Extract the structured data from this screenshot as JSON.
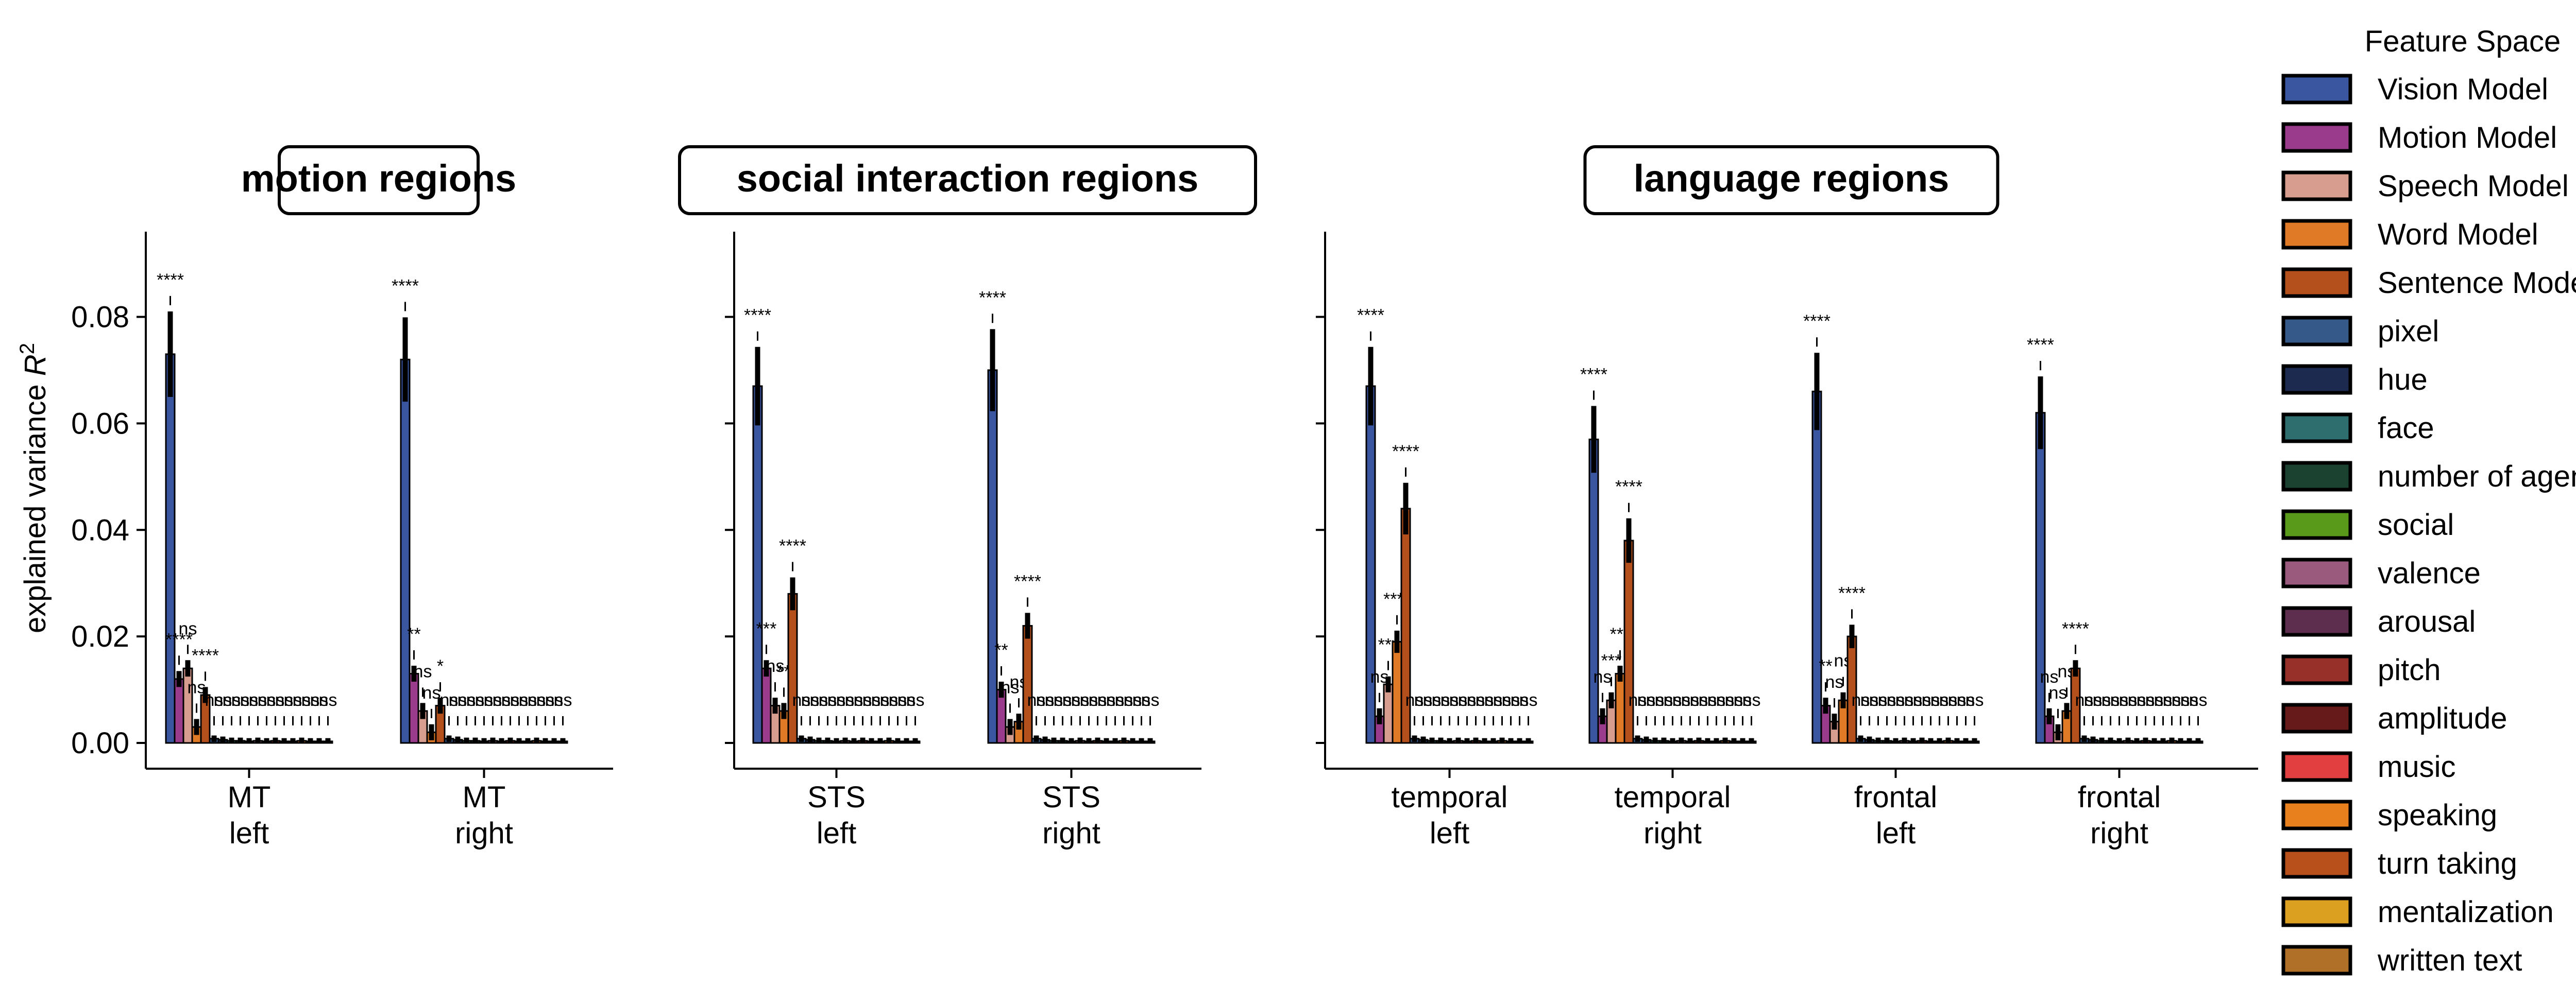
{
  "chart_data": {
    "type": "bar",
    "ylabel": "explained variance R²",
    "ylim": [
      0,
      0.096
    ],
    "yticks": [
      "0.00",
      "0.02",
      "0.04",
      "0.06",
      "0.08"
    ],
    "legend": {
      "title": "Feature Space",
      "placement": "right",
      "entries": [
        {
          "name": "Vision Model",
          "color": "#3a56a0"
        },
        {
          "name": "Motion Model",
          "color": "#9b3b8c"
        },
        {
          "name": "Speech Model",
          "color": "#d79d8e"
        },
        {
          "name": "Word Model",
          "color": "#e07a26"
        },
        {
          "name": "Sentence Model",
          "color": "#b3501c"
        },
        {
          "name": "pixel",
          "color": "#355a8a"
        },
        {
          "name": "hue",
          "color": "#1d2a4f"
        },
        {
          "name": "face",
          "color": "#2e6e6e"
        },
        {
          "name": "number of agents",
          "color": "#1b4231"
        },
        {
          "name": "social",
          "color": "#5a9a1a"
        },
        {
          "name": "valence",
          "color": "#9a5a7e"
        },
        {
          "name": "arousal",
          "color": "#5e2e4e"
        },
        {
          "name": "pitch",
          "color": "#963029"
        },
        {
          "name": "amplitude",
          "color": "#661a1a"
        },
        {
          "name": "music",
          "color": "#e24040"
        },
        {
          "name": "speaking",
          "color": "#e8801e"
        },
        {
          "name": "turn taking",
          "color": "#b8501c"
        },
        {
          "name": "mentalization",
          "color": "#dca020"
        },
        {
          "name": "written text",
          "color": "#b07028"
        }
      ]
    },
    "panels": [
      {
        "title": "motion regions",
        "groups": [
          {
            "label": [
              "MT",
              "left"
            ],
            "values": [
              0.073,
              0.012,
              0.014,
              0.003,
              0.009,
              0.0008,
              0.0006,
              0.0004,
              0.0004,
              0.0003,
              0.0004,
              0.0003,
              0.0004,
              0.0003,
              0.0003,
              0.0004,
              0.0003,
              0.0003,
              0.0003
            ],
            "sig": [
              "****",
              "****",
              "ns",
              "ns",
              "****",
              "ns",
              "ns",
              "ns",
              "ns",
              "ns",
              "ns",
              "ns",
              "ns",
              "ns",
              "ns",
              "ns",
              "ns",
              "ns",
              "ns"
            ]
          },
          {
            "label": [
              "MT",
              "right"
            ],
            "values": [
              0.072,
              0.013,
              0.006,
              0.002,
              0.007,
              0.0008,
              0.0006,
              0.0004,
              0.0004,
              0.0003,
              0.0004,
              0.0003,
              0.0004,
              0.0003,
              0.0003,
              0.0004,
              0.0003,
              0.0003,
              0.0003
            ],
            "sig": [
              "****",
              "**",
              "ns",
              "ns",
              "*",
              "ns",
              "ns",
              "ns",
              "ns",
              "ns",
              "ns",
              "ns",
              "ns",
              "ns",
              "ns",
              "ns",
              "ns",
              "ns",
              "ns"
            ]
          }
        ]
      },
      {
        "title": "social interaction regions",
        "groups": [
          {
            "label": [
              "STS",
              "left"
            ],
            "values": [
              0.067,
              0.014,
              0.007,
              0.006,
              0.028,
              0.0008,
              0.0006,
              0.0004,
              0.0004,
              0.0003,
              0.0004,
              0.0003,
              0.0004,
              0.0003,
              0.0003,
              0.0004,
              0.0003,
              0.0003,
              0.0003
            ],
            "sig": [
              "****",
              "***",
              "ns",
              "**",
              "****",
              "ns",
              "ns",
              "ns",
              "ns",
              "ns",
              "ns",
              "ns",
              "ns",
              "ns",
              "ns",
              "ns",
              "ns",
              "ns",
              "ns"
            ]
          },
          {
            "label": [
              "STS",
              "right"
            ],
            "values": [
              0.07,
              0.01,
              0.003,
              0.004,
              0.022,
              0.0008,
              0.0006,
              0.0004,
              0.0004,
              0.0003,
              0.0004,
              0.0003,
              0.0004,
              0.0003,
              0.0003,
              0.0004,
              0.0003,
              0.0003,
              0.0003
            ],
            "sig": [
              "****",
              "**",
              "ns",
              "ns",
              "****",
              "ns",
              "ns",
              "ns",
              "ns",
              "ns",
              "ns",
              "ns",
              "ns",
              "ns",
              "ns",
              "ns",
              "ns",
              "ns",
              "ns"
            ]
          }
        ]
      },
      {
        "title": "language regions",
        "groups": [
          {
            "label": [
              "temporal",
              "left"
            ],
            "values": [
              0.067,
              0.005,
              0.011,
              0.019,
              0.044,
              0.0008,
              0.0006,
              0.0004,
              0.0004,
              0.0003,
              0.0004,
              0.0003,
              0.0004,
              0.0003,
              0.0003,
              0.0004,
              0.0003,
              0.0003,
              0.0003
            ],
            "sig": [
              "****",
              "ns",
              "***",
              "****",
              "****",
              "ns",
              "ns",
              "ns",
              "ns",
              "ns",
              "ns",
              "ns",
              "ns",
              "ns",
              "ns",
              "ns",
              "ns",
              "ns",
              "ns"
            ]
          },
          {
            "label": [
              "temporal",
              "right"
            ],
            "values": [
              0.057,
              0.005,
              0.008,
              0.013,
              0.038,
              0.0008,
              0.0006,
              0.0004,
              0.0004,
              0.0003,
              0.0004,
              0.0003,
              0.0004,
              0.0003,
              0.0003,
              0.0004,
              0.0003,
              0.0003,
              0.0003
            ],
            "sig": [
              "****",
              "ns",
              "***",
              "***",
              "****",
              "ns",
              "ns",
              "ns",
              "ns",
              "ns",
              "ns",
              "ns",
              "ns",
              "ns",
              "ns",
              "ns",
              "ns",
              "ns",
              "ns"
            ]
          },
          {
            "label": [
              "frontal",
              "left"
            ],
            "values": [
              0.066,
              0.007,
              0.004,
              0.008,
              0.02,
              0.0008,
              0.0006,
              0.0004,
              0.0004,
              0.0003,
              0.0004,
              0.0003,
              0.0004,
              0.0003,
              0.0003,
              0.0004,
              0.0003,
              0.0003,
              0.0003
            ],
            "sig": [
              "****",
              "**",
              "ns",
              "ns",
              "****",
              "ns",
              "ns",
              "ns",
              "ns",
              "ns",
              "ns",
              "ns",
              "ns",
              "ns",
              "ns",
              "ns",
              "ns",
              "ns",
              "ns"
            ]
          },
          {
            "label": [
              "frontal",
              "right"
            ],
            "values": [
              0.062,
              0.005,
              0.002,
              0.006,
              0.014,
              0.0008,
              0.0006,
              0.0004,
              0.0004,
              0.0003,
              0.0004,
              0.0003,
              0.0004,
              0.0003,
              0.0003,
              0.0004,
              0.0003,
              0.0003,
              0.0003
            ],
            "sig": [
              "****",
              "ns",
              "ns",
              "ns",
              "****",
              "ns",
              "ns",
              "ns",
              "ns",
              "ns",
              "ns",
              "ns",
              "ns",
              "ns",
              "ns",
              "ns",
              "ns",
              "ns",
              "ns"
            ]
          }
        ]
      }
    ]
  }
}
